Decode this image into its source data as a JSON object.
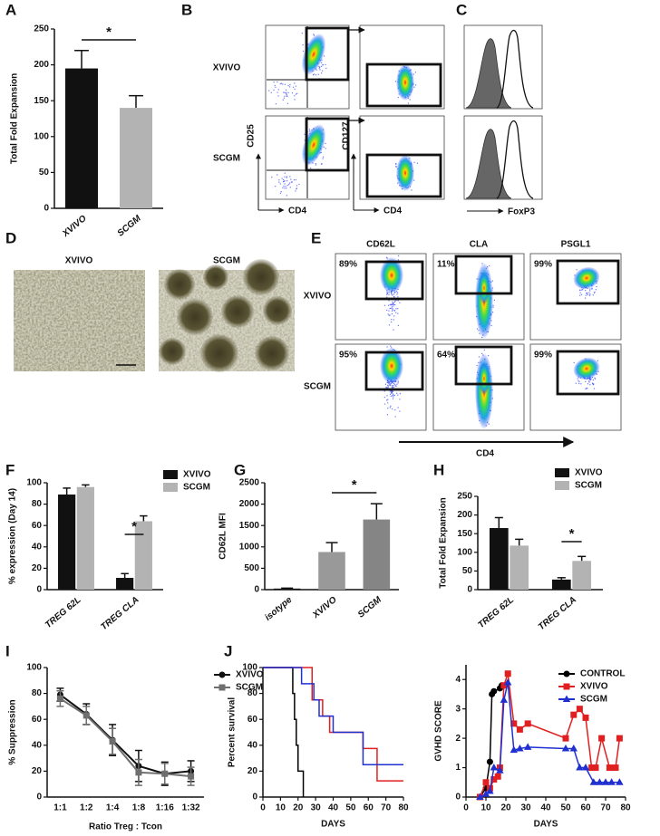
{
  "panel_labels": [
    "A",
    "B",
    "C",
    "D",
    "E",
    "F",
    "G",
    "H",
    "I",
    "J"
  ],
  "panel_b": {
    "rows": [
      "XVIVO",
      "SCGM"
    ],
    "y_axes": [
      "CD25",
      "CD127"
    ],
    "x_axes": [
      "CD4",
      "CD4"
    ]
  },
  "panel_c": {
    "x_axis": "FoxP3"
  },
  "panel_d": {
    "columns": [
      "XVIVO",
      "SCGM"
    ]
  },
  "panel_e": {
    "columns": [
      "CD62L",
      "CLA",
      "PSGL1"
    ],
    "rows": [
      "XVIVO",
      "SCGM"
    ],
    "gates": [
      [
        "89%",
        "11%",
        "99%"
      ],
      [
        "95%",
        "64%",
        "99%"
      ]
    ],
    "x_axis": "CD4"
  },
  "chart_data": [
    {
      "type": "bar",
      "ylabel": "Total Fold Expansion",
      "categories": [
        "XVIVO",
        "SCGM"
      ],
      "values": [
        195,
        140
      ],
      "errors": [
        25,
        17
      ],
      "colors": [
        "#111111",
        "#b3b3b3"
      ],
      "ylim": [
        0,
        250
      ],
      "yticks": [
        0,
        50,
        100,
        150,
        200,
        250
      ],
      "annotation": "*"
    },
    {
      "type": "bar",
      "ylabel": "% expression (Day 14)",
      "categories": [
        "TREG 62L",
        "TREG CLA"
      ],
      "series": [
        {
          "name": "XVIVO",
          "color": "#111111",
          "values": [
            89,
            11
          ],
          "errors": [
            6,
            4
          ]
        },
        {
          "name": "SCGM",
          "color": "#b3b3b3",
          "values": [
            96,
            64
          ],
          "errors": [
            2,
            5
          ]
        }
      ],
      "ylim": [
        0,
        100
      ],
      "yticks": [
        0,
        20,
        40,
        60,
        80,
        100
      ],
      "annotation": "*"
    },
    {
      "type": "bar",
      "ylabel": "CD62L MFI",
      "categories": [
        "isotype",
        "XVIVO",
        "SCGM"
      ],
      "values": [
        25,
        880,
        1640
      ],
      "errors": [
        10,
        220,
        370
      ],
      "colors": [
        "#111111",
        "#999999",
        "#858585"
      ],
      "ylim": [
        0,
        2500
      ],
      "yticks": [
        0,
        500,
        1000,
        1500,
        2000,
        2500
      ],
      "annotation": "*"
    },
    {
      "type": "bar",
      "ylabel": "Total Fold Expansion",
      "categories": [
        "TREG 62L",
        "TREG CLA"
      ],
      "series": [
        {
          "name": "XVIVO",
          "color": "#111111",
          "values": [
            165,
            27
          ],
          "errors": [
            28,
            5
          ]
        },
        {
          "name": "SCGM",
          "color": "#b3b3b3",
          "values": [
            118,
            77
          ],
          "errors": [
            17,
            12
          ]
        }
      ],
      "ylim": [
        0,
        250
      ],
      "yticks": [
        0,
        50,
        100,
        150,
        200,
        250
      ],
      "annotation": "*"
    },
    {
      "type": "line",
      "ylabel": "% Suppression",
      "xlabel": "Ratio Treg : Tcon",
      "categories": [
        "1:1",
        "1:2",
        "1:4",
        "1:8",
        "1:16",
        "1:32"
      ],
      "series": [
        {
          "name": "XVIVO",
          "color": "#111111",
          "marker": "circle",
          "values": [
            79,
            64,
            44,
            24,
            18,
            20
          ],
          "errors": [
            5,
            8,
            12,
            12,
            9,
            8
          ]
        },
        {
          "name": "SCGM",
          "color": "#6e6e6e",
          "marker": "square",
          "values": [
            76,
            63,
            43,
            19,
            18,
            16
          ],
          "errors": [
            6,
            7,
            10,
            10,
            8,
            7
          ]
        }
      ],
      "ylim": [
        0,
        100
      ],
      "yticks": [
        0,
        20,
        40,
        60,
        80,
        100
      ]
    },
    {
      "type": "step",
      "ylabel": "Percent survival",
      "xlabel": "DAYS",
      "series": [
        {
          "color": "#000000",
          "x": [
            0,
            17,
            18,
            19,
            20,
            23
          ],
          "values": [
            100,
            80,
            60,
            40,
            20,
            0
          ]
        },
        {
          "color": "#e02020",
          "x": [
            0,
            28,
            34,
            38,
            57,
            65,
            80
          ],
          "values": [
            100,
            75,
            62.5,
            50,
            37.5,
            12.5,
            12.5
          ]
        },
        {
          "color": "#2030d0",
          "x": [
            0,
            22,
            29,
            32,
            40,
            57,
            80
          ],
          "values": [
            100,
            87.5,
            75,
            62.5,
            50,
            25,
            25
          ]
        }
      ],
      "xlim": [
        0,
        80
      ],
      "xticks": [
        0,
        10,
        20,
        30,
        40,
        50,
        60,
        70,
        80
      ],
      "ylim": [
        0,
        100
      ],
      "yticks": [
        0,
        20,
        40,
        60,
        80,
        100
      ]
    },
    {
      "type": "line",
      "ylabel": "GVHD SCORE",
      "xlabel": "DAYS",
      "series": [
        {
          "name": "CONTROL",
          "color": "#000000",
          "marker": "circle",
          "x": [
            7,
            10,
            12,
            13,
            14,
            17,
            18
          ],
          "values": [
            0,
            0.3,
            1.2,
            3.5,
            3.6,
            3.7,
            3.8
          ]
        },
        {
          "name": "XVIVO",
          "color": "#e02020",
          "marker": "square",
          "x": [
            7,
            10,
            12,
            14,
            16,
            17,
            19,
            21,
            24,
            27,
            31,
            50,
            54,
            57,
            60,
            63,
            65,
            68,
            72,
            75,
            77
          ],
          "values": [
            0,
            0.5,
            0.3,
            0.6,
            0.7,
            1.0,
            3.8,
            4.2,
            2.5,
            2.3,
            2.5,
            2.0,
            2.8,
            3.0,
            2.7,
            1.0,
            1.0,
            2.0,
            1.0,
            1.0,
            2.0
          ]
        },
        {
          "name": "SCGM",
          "color": "#2030d0",
          "marker": "triangle",
          "x": [
            7,
            10,
            12,
            14,
            17,
            19,
            21,
            24,
            27,
            31,
            50,
            54,
            57,
            60,
            64,
            67,
            70,
            73,
            77
          ],
          "values": [
            0,
            0.1,
            0.2,
            1.0,
            0.9,
            3.3,
            3.9,
            1.6,
            1.65,
            1.7,
            1.65,
            1.65,
            1.0,
            1.0,
            0.5,
            0.5,
            0.5,
            0.5,
            0.5
          ]
        }
      ],
      "xlim": [
        0,
        80
      ],
      "xticks": [
        0,
        10,
        20,
        30,
        40,
        50,
        60,
        70,
        80
      ],
      "ylim": [
        0,
        4.5
      ],
      "yticks": [
        0,
        1,
        2,
        3,
        4
      ]
    }
  ]
}
